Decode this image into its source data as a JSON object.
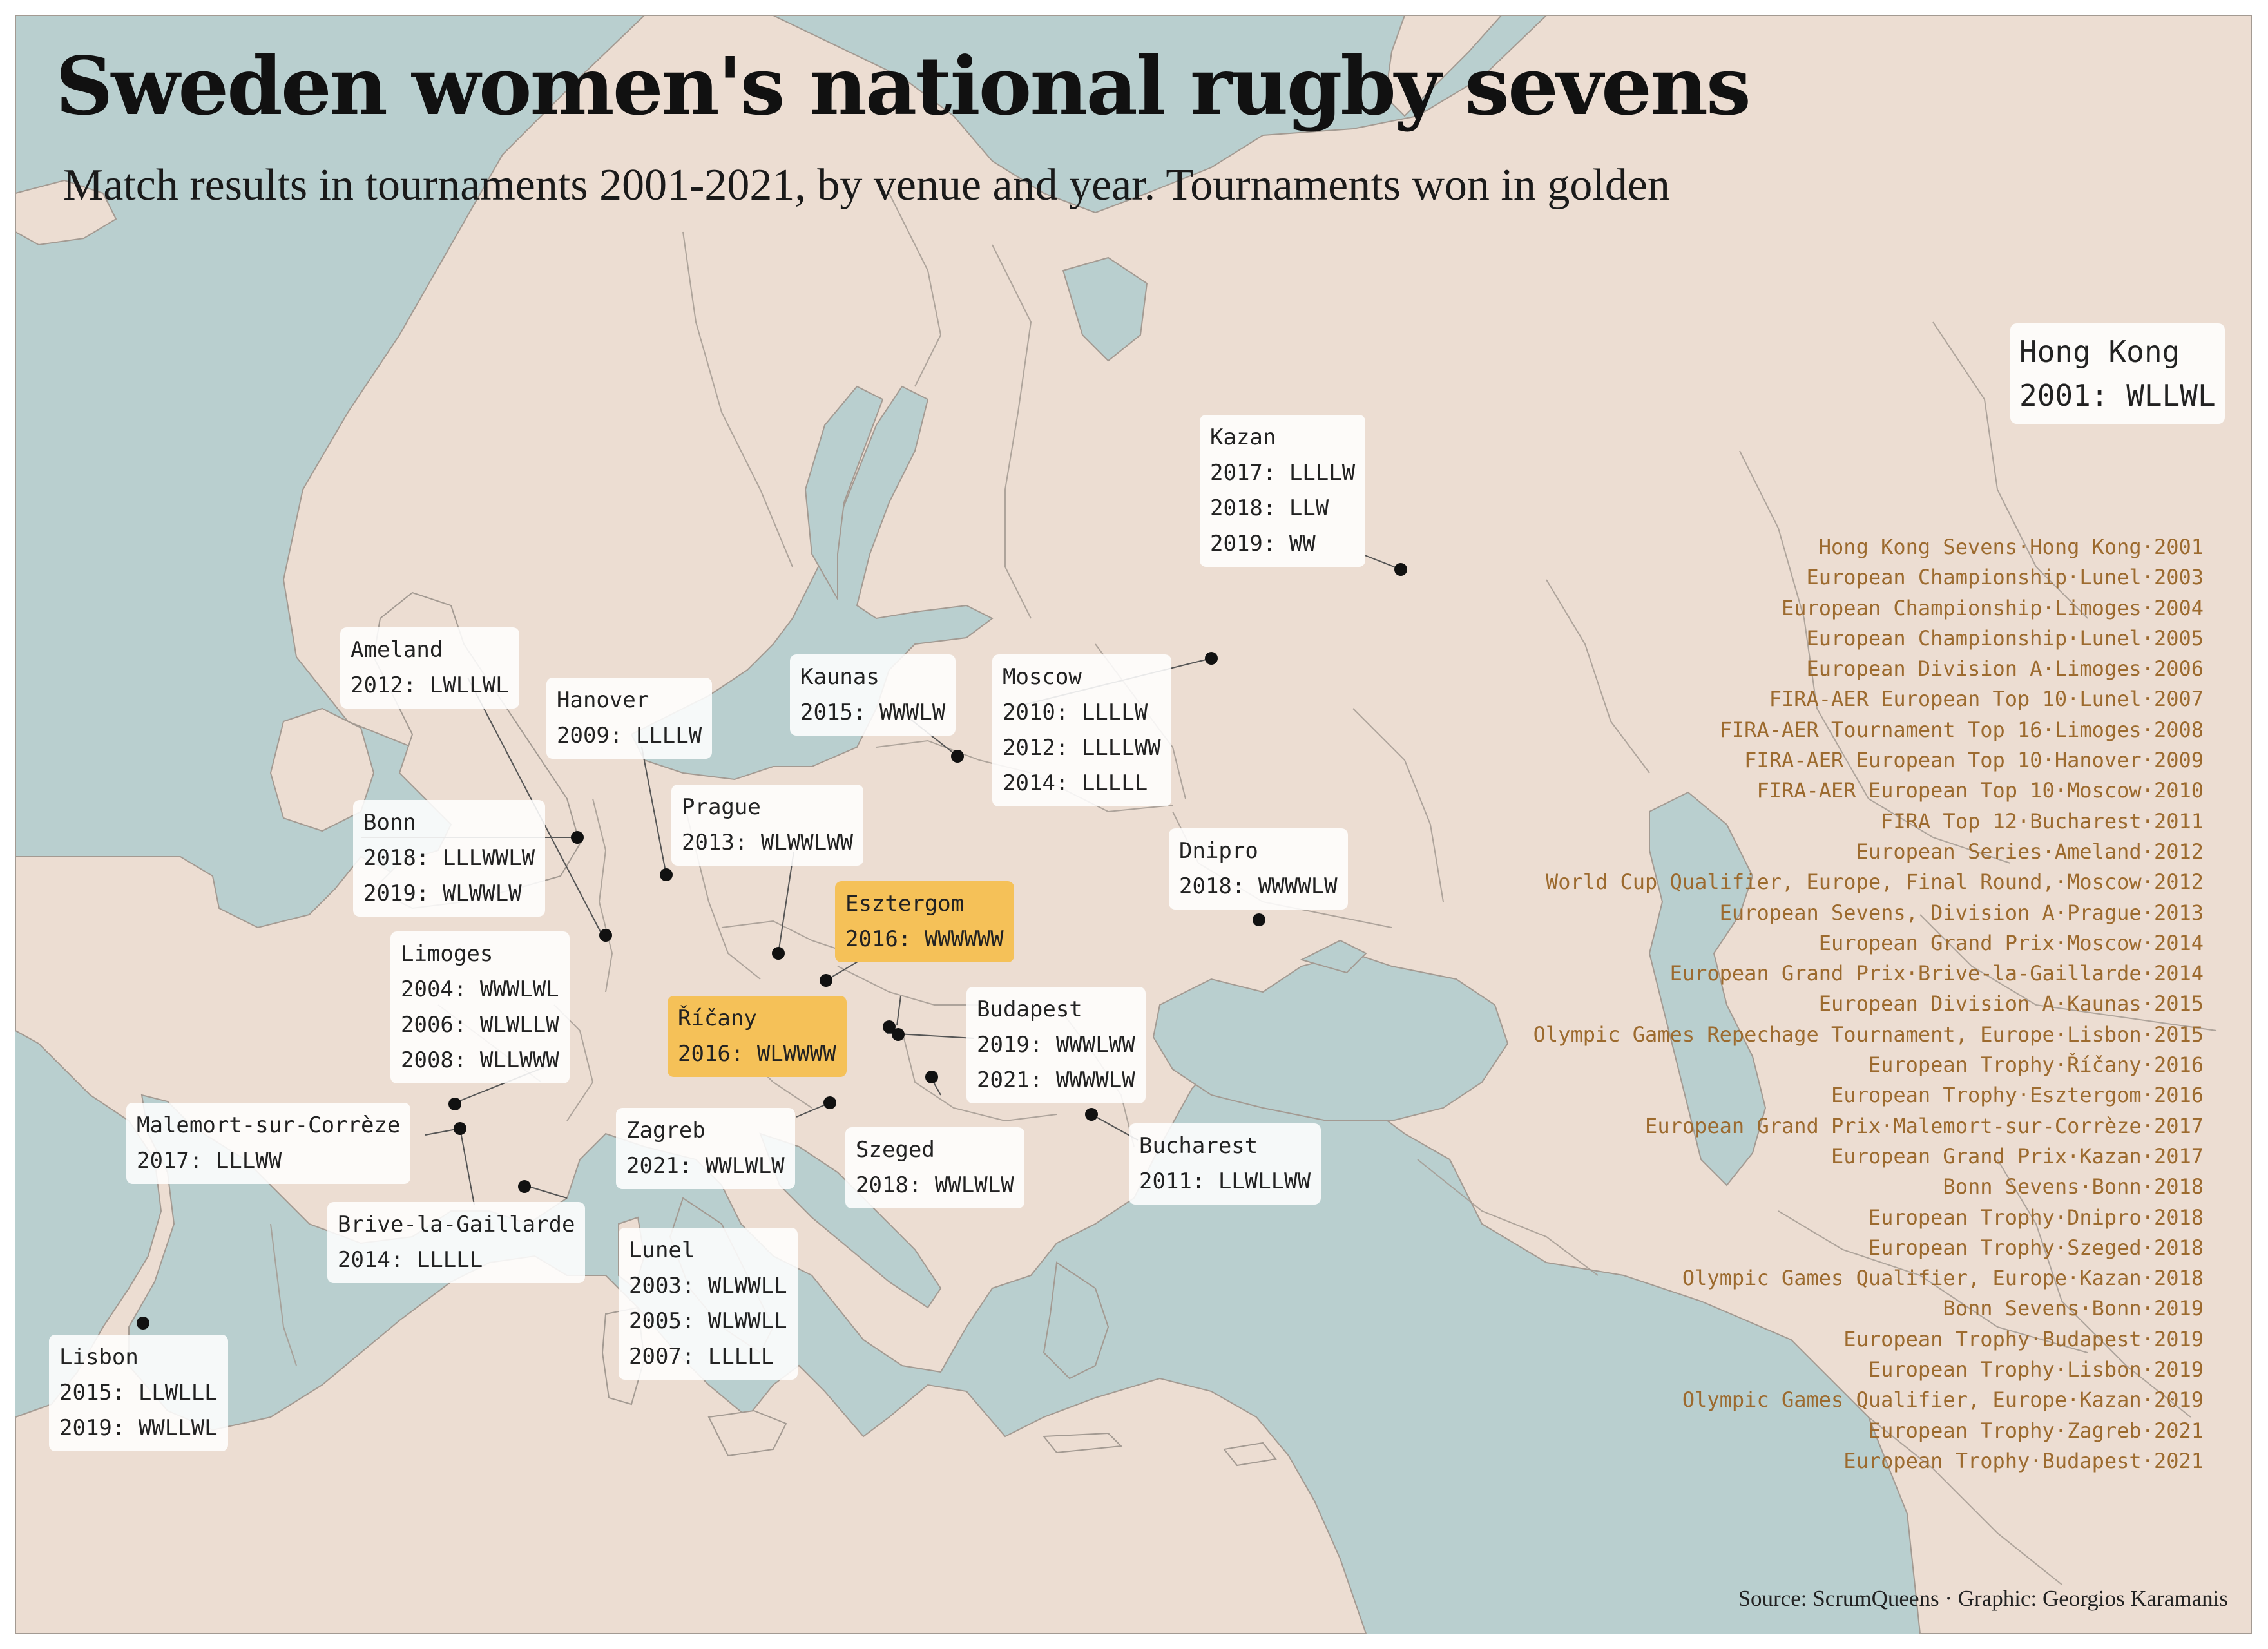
{
  "title": "Sweden women's national rugby sevens",
  "subtitle": "Match results in tournaments 2001-2021, by venue and year. Tournaments won in golden",
  "source": "Source: ScrumQueens · Graphic: Georgios Karamanis",
  "colors": {
    "sea": "#b9cfcf",
    "land": "#ecddd2",
    "border": "#9f948b",
    "won": "#f5c158",
    "list_text": "#9c6a2e"
  },
  "venues": [
    {
      "key": "hongkong",
      "name": "Hong Kong",
      "results": [
        "2001: WLLWL"
      ],
      "won": false
    },
    {
      "key": "kazan",
      "name": "Kazan",
      "results": [
        "2017: LLLLW",
        "2018: LLW",
        "2019: WW"
      ],
      "won": false
    },
    {
      "key": "ameland",
      "name": "Ameland",
      "results": [
        "2012: LWLLWL"
      ],
      "won": false
    },
    {
      "key": "hanover",
      "name": "Hanover",
      "results": [
        "2009: LLLLW"
      ],
      "won": false
    },
    {
      "key": "kaunas",
      "name": "Kaunas",
      "results": [
        "2015: WWWLW"
      ],
      "won": false
    },
    {
      "key": "moscow",
      "name": "Moscow",
      "results": [
        "2010: LLLLW",
        "2012: LLLLWW",
        "2014: LLLLL"
      ],
      "won": false
    },
    {
      "key": "bonn",
      "name": "Bonn",
      "results": [
        "2018: LLLWWLW",
        "2019: WLWWLW"
      ],
      "won": false
    },
    {
      "key": "prague",
      "name": "Prague",
      "results": [
        "2013: WLWWLWW"
      ],
      "won": false
    },
    {
      "key": "dnipro",
      "name": "Dnipro",
      "results": [
        "2018: WWWWLW"
      ],
      "won": false
    },
    {
      "key": "esztergom",
      "name": "Esztergom",
      "results": [
        "2016: WWWWWW"
      ],
      "won": true
    },
    {
      "key": "limoges",
      "name": "Limoges",
      "results": [
        "2004: WWWLWL",
        "2006: WLWLLW",
        "2008: WLLWWW"
      ],
      "won": false
    },
    {
      "key": "ricany",
      "name": "Říčany",
      "results": [
        "2016: WLWWWW"
      ],
      "won": true
    },
    {
      "key": "budapest",
      "name": "Budapest",
      "results": [
        "2019: WWWLWW",
        "2021: WWWWLW"
      ],
      "won": false
    },
    {
      "key": "malemort",
      "name": "Malemort-sur-Corrèze",
      "results": [
        "2017: LLLWW"
      ],
      "won": false
    },
    {
      "key": "zagreb",
      "name": "Zagreb",
      "results": [
        "2021: WWLWLW"
      ],
      "won": false
    },
    {
      "key": "szeged",
      "name": "Szeged",
      "results": [
        "2018: WWLWLW"
      ],
      "won": false
    },
    {
      "key": "bucharest",
      "name": "Bucharest",
      "results": [
        "2011: LLWLLWW"
      ],
      "won": false
    },
    {
      "key": "brive",
      "name": "Brive-la-Gaillarde",
      "results": [
        "2014: LLLLL"
      ],
      "won": false
    },
    {
      "key": "lunel",
      "name": "Lunel",
      "results": [
        "2003: WLWWLL",
        "2005: WLWWLL",
        "2007: LLLLL"
      ],
      "won": false
    },
    {
      "key": "lisbon",
      "name": "Lisbon",
      "results": [
        "2015: LLWLLL",
        "2019: WWLLWL"
      ],
      "won": false
    }
  ],
  "tournaments": [
    "Hong Kong Sevens·Hong Kong·2001",
    "European Championship·Lunel·2003",
    "European Championship·Limoges·2004",
    "European Championship·Lunel·2005",
    "European Division A·Limoges·2006",
    "FIRA-AER European Top 10·Lunel·2007",
    "FIRA-AER Tournament Top 16·Limoges·2008",
    "FIRA-AER European Top 10·Hanover·2009",
    "FIRA-AER European Top 10·Moscow·2010",
    "FIRA Top 12·Bucharest·2011",
    "European Series·Ameland·2012",
    "World Cup Qualifier, Europe, Final Round,·Moscow·2012",
    "European Sevens, Division A·Prague·2013",
    "European Grand Prix·Moscow·2014",
    "European Grand Prix·Brive-la-Gaillarde·2014",
    "European Division A·Kaunas·2015",
    "Olympic Games Repechage Tournament, Europe·Lisbon·2015",
    "European Trophy·Říčany·2016",
    "European Trophy·Esztergom·2016",
    "European Grand Prix·Malemort-sur-Corrèze·2017",
    "European Grand Prix·Kazan·2017",
    "Bonn Sevens·Bonn·2018",
    "European Trophy·Dnipro·2018",
    "European Trophy·Szeged·2018",
    "Olympic Games Qualifier, Europe·Kazan·2018",
    "Bonn Sevens·Bonn·2019",
    "European Trophy·Budapest·2019",
    "European Trophy·Lisbon·2019",
    "Olympic Games Qualifier, Europe·Kazan·2019",
    "European Trophy·Zagreb·2021",
    "European Trophy·Budapest·2021"
  ]
}
